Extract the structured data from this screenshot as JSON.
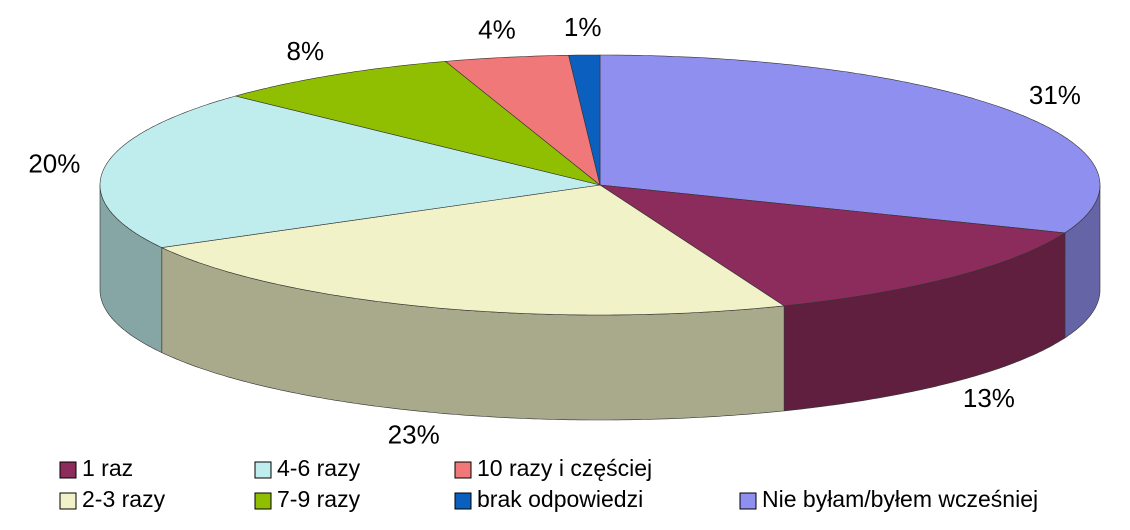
{
  "chart_data": {
    "type": "pie",
    "categories": [
      "Nie byłam/byłem  wcześniej",
      "1 raz",
      "2-3 razy",
      "4-6 razy",
      "7-9 razy",
      "10 razy i częściej",
      "brak odpowiedzi"
    ],
    "values": [
      31,
      13,
      23,
      20,
      8,
      4,
      1
    ],
    "value_labels": [
      "31%",
      "13%",
      "23%",
      "20%",
      "8%",
      "4%",
      "1%"
    ],
    "colors": [
      "#8f8fef",
      "#8b2c5c",
      "#f2f2c8",
      "#bfecec",
      "#8fbf00",
      "#f07878",
      "#0a5fbf"
    ],
    "legend_order": [
      1,
      2,
      3,
      4,
      5,
      6,
      0
    ]
  }
}
